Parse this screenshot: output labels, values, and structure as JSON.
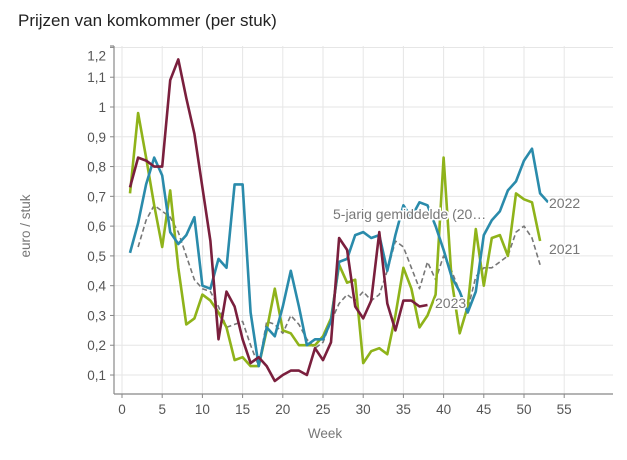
{
  "chart_data": {
    "type": "line",
    "title": "Prijzen van komkommer (per stuk)",
    "xlabel": "Week",
    "ylabel": "euro / stuk",
    "xlim": [
      -1,
      61
    ],
    "ylim": [
      0.035,
      1.22
    ],
    "grid": true,
    "x_ticks": [
      0,
      5,
      10,
      15,
      20,
      25,
      30,
      35,
      40,
      45,
      50,
      55
    ],
    "x_tick_labels": [
      "0",
      "5",
      "10",
      "15",
      "20",
      "25",
      "30",
      "35",
      "40",
      "45",
      "50",
      "55"
    ],
    "y_ticks": [
      0.1,
      0.2,
      0.3,
      0.4,
      0.5,
      0.6,
      0.7,
      0.8,
      0.9,
      1.0,
      1.1,
      1.2
    ],
    "y_tick_labels": [
      "0,1",
      "0,2",
      "0,3",
      "0,4",
      "0,5",
      "0,6",
      "0,7",
      "0,8",
      "0,9",
      "1",
      "1,1",
      "1,2"
    ],
    "series": [
      {
        "name": "5-jarig gemiddelde (20…",
        "label": "5-jarig gemiddelde (20…",
        "color": "#777777",
        "dashed": true,
        "start_week": 2,
        "values": [
          0.53,
          0.62,
          0.67,
          0.65,
          0.63,
          0.58,
          0.5,
          0.42,
          0.39,
          0.38,
          0.33,
          0.26,
          0.27,
          0.28,
          0.2,
          0.13,
          0.28,
          0.27,
          0.24,
          0.3,
          0.27,
          0.22,
          0.19,
          0.21,
          0.28,
          0.34,
          0.37,
          0.35,
          0.38,
          0.35,
          0.37,
          0.45,
          0.55,
          0.53,
          0.46,
          0.39,
          0.48,
          0.42,
          0.5,
          0.45,
          0.38,
          0.32,
          0.43,
          0.46,
          0.46,
          0.48,
          0.5,
          0.58,
          0.6,
          0.56,
          0.47
        ]
      },
      {
        "name": "2021",
        "label": "2021",
        "color": "#8fb31a",
        "dashed": false,
        "start_week": 1,
        "values": [
          0.71,
          0.98,
          0.83,
          0.67,
          0.53,
          0.72,
          0.46,
          0.27,
          0.29,
          0.37,
          0.35,
          0.31,
          0.26,
          0.15,
          0.16,
          0.13,
          0.13,
          0.25,
          0.39,
          0.25,
          0.24,
          0.2,
          0.2,
          0.2,
          0.23,
          0.29,
          0.47,
          0.41,
          0.42,
          0.14,
          0.18,
          0.19,
          0.17,
          0.3,
          0.46,
          0.39,
          0.26,
          0.3,
          0.37,
          0.83,
          0.42,
          0.24,
          0.33,
          0.59,
          0.4,
          0.56,
          0.57,
          0.5,
          0.71,
          0.69,
          0.68,
          0.55
        ]
      },
      {
        "name": "2022",
        "label": "2022",
        "color": "#2a8bab",
        "dashed": false,
        "start_week": 1,
        "values": [
          0.51,
          0.61,
          0.74,
          0.83,
          0.77,
          0.58,
          0.54,
          0.57,
          0.63,
          0.4,
          0.39,
          0.49,
          0.46,
          0.74,
          0.74,
          0.31,
          0.13,
          0.26,
          0.23,
          0.33,
          0.45,
          0.33,
          0.2,
          0.22,
          0.22,
          0.28,
          0.48,
          0.49,
          0.57,
          0.58,
          0.56,
          0.57,
          0.45,
          0.57,
          0.67,
          0.63,
          0.68,
          0.67,
          0.6,
          0.52,
          0.43,
          0.38,
          0.31,
          0.38,
          0.57,
          0.62,
          0.65,
          0.72,
          0.75,
          0.82,
          0.86,
          0.71,
          0.68
        ]
      },
      {
        "name": "2023",
        "label": "2023",
        "color": "#7a1f3d",
        "dashed": false,
        "start_week": 1,
        "values": [
          0.73,
          0.83,
          0.82,
          0.8,
          0.8,
          1.09,
          1.16,
          1.03,
          0.91,
          0.73,
          0.55,
          0.22,
          0.38,
          0.33,
          0.22,
          0.14,
          0.16,
          0.13,
          0.08,
          0.1,
          0.115,
          0.115,
          0.1,
          0.19,
          0.15,
          0.21,
          0.56,
          0.52,
          0.33,
          0.29,
          0.35,
          0.58,
          0.34,
          0.25,
          0.35,
          0.35,
          0.33,
          0.335
        ]
      }
    ]
  }
}
